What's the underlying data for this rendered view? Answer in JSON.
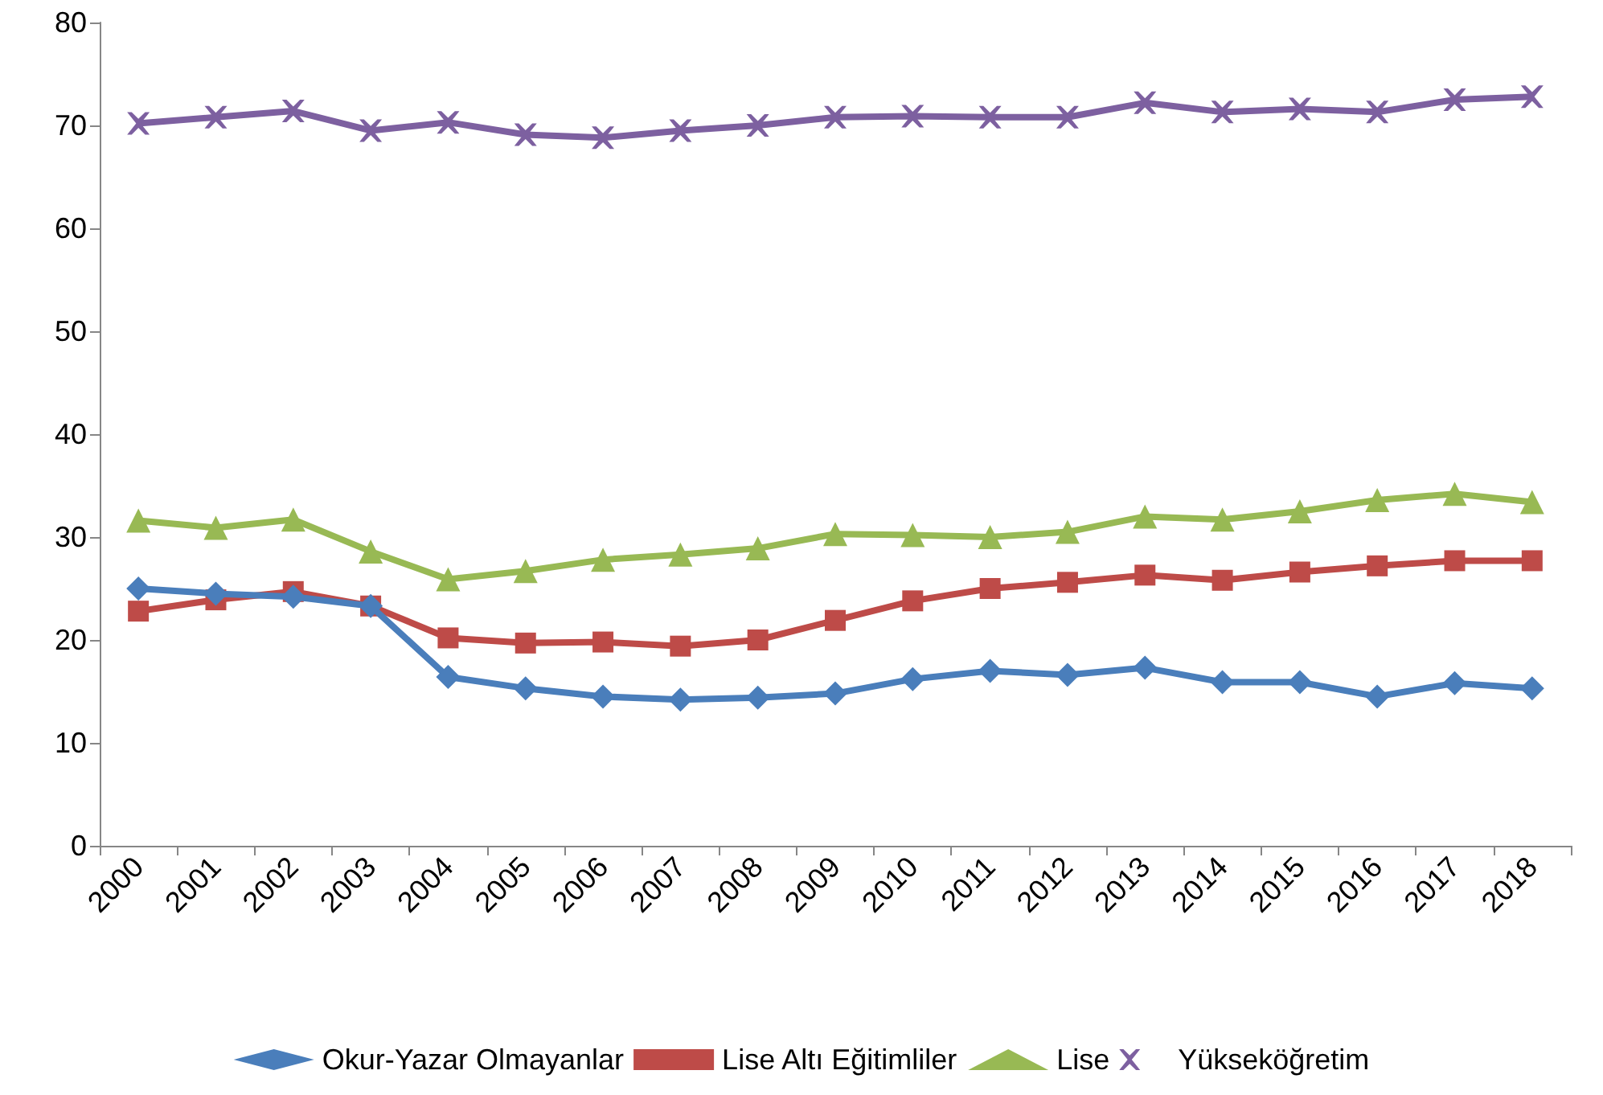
{
  "chart_data": {
    "type": "line",
    "categories": [
      "2000",
      "2001",
      "2002",
      "2003",
      "2004",
      "2005",
      "2006",
      "2007",
      "2008",
      "2009",
      "2010",
      "2011",
      "2012",
      "2013",
      "2014",
      "2015",
      "2016",
      "2017",
      "2018"
    ],
    "series": [
      {
        "name": "Okur-Yazar Olmayanlar",
        "color": "#4a7ebb",
        "marker": "diamond",
        "values": [
          25,
          24.5,
          24.2,
          23.3,
          16.4,
          15.3,
          14.5,
          14.2,
          14.4,
          14.8,
          16.2,
          17,
          16.6,
          17.3,
          15.9,
          15.9,
          14.5,
          15.8,
          15.3
        ]
      },
      {
        "name": "Lise Altı Eğitimliler",
        "color": "#be4b48",
        "marker": "square",
        "values": [
          22.8,
          23.9,
          24.7,
          23.3,
          20.2,
          19.7,
          19.8,
          19.4,
          20,
          21.9,
          23.8,
          25,
          25.6,
          26.3,
          25.8,
          26.6,
          27.2,
          27.7,
          27.7
        ]
      },
      {
        "name": "Lise",
        "color": "#98b954",
        "marker": "triangle",
        "values": [
          31.6,
          30.9,
          31.7,
          28.6,
          25.9,
          26.7,
          27.8,
          28.3,
          28.9,
          30.3,
          30.2,
          30,
          30.5,
          32,
          31.7,
          32.5,
          33.6,
          34.2,
          33.4
        ]
      },
      {
        "name": "Yükseköğretim",
        "color": "#7d60a0",
        "marker": "cross",
        "values": [
          70.2,
          70.8,
          71.4,
          69.5,
          70.3,
          69.1,
          68.8,
          69.5,
          70,
          70.8,
          70.9,
          70.8,
          70.8,
          72.2,
          71.3,
          71.6,
          71.3,
          72.5,
          72.8
        ]
      }
    ],
    "ylim": [
      0,
      80
    ],
    "yticks": [
      0,
      10,
      20,
      30,
      40,
      50,
      60,
      70,
      80
    ],
    "grid": false,
    "legend": "bottom",
    "line_style": "solid"
  }
}
